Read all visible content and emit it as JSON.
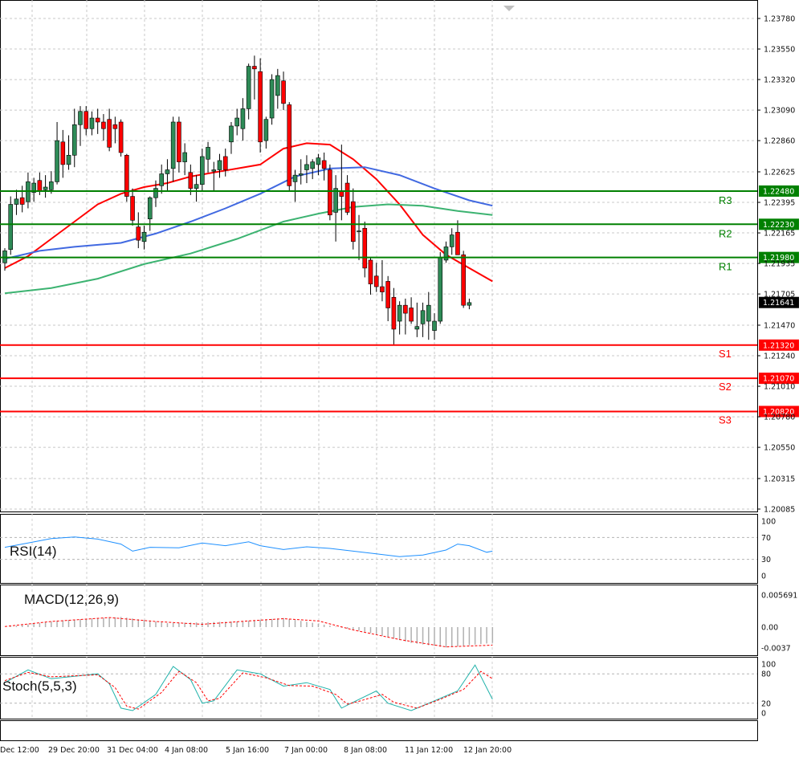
{
  "chart_data": {
    "type": "candlestick",
    "instrument_price_axis": {
      "ticks": [
        "1.23780",
        "1.23550",
        "1.23320",
        "1.23090",
        "1.22860",
        "1.22625",
        "1.22395",
        "1.22165",
        "1.21935",
        "1.21705",
        "1.21470",
        "1.21240",
        "1.21010",
        "1.20780",
        "1.20550",
        "1.20315",
        "1.20085"
      ],
      "range": [
        1.2005,
        1.2381
      ]
    },
    "current_price": "1.21641",
    "x_labels": [
      "Dec 12:00",
      "29 Dec 20:00",
      "31 Dec 04:00",
      "4 Jan 08:00",
      "5 Jan 16:00",
      "7 Jan 00:00",
      "8 Jan 08:00",
      "11 Jan 12:00",
      "12 Jan 20:00"
    ],
    "levels": [
      {
        "name": "R3",
        "value": "1.22480",
        "color": "#008000"
      },
      {
        "name": "R2",
        "value": "1.22230",
        "color": "#008000"
      },
      {
        "name": "R1",
        "value": "1.21980",
        "color": "#008000"
      },
      {
        "name": "S1",
        "value": "1.21320",
        "color": "#ff0000"
      },
      {
        "name": "S2",
        "value": "1.21070",
        "color": "#ff0000"
      },
      {
        "name": "S3",
        "value": "1.20820",
        "color": "#ff0000"
      }
    ],
    "candles": [
      [
        1.2194,
        1.2205,
        1.2188,
        1.2203
      ],
      [
        1.2204,
        1.2244,
        1.22,
        1.2238
      ],
      [
        1.2238,
        1.2249,
        1.223,
        1.2242
      ],
      [
        1.2243,
        1.2252,
        1.2232,
        1.2238
      ],
      [
        1.224,
        1.2262,
        1.2235,
        1.2255
      ],
      [
        1.2247,
        1.2258,
        1.224,
        1.2254
      ],
      [
        1.2256,
        1.2262,
        1.2245,
        1.2248
      ],
      [
        1.2249,
        1.226,
        1.2243,
        1.2251
      ],
      [
        1.2249,
        1.2263,
        1.2246,
        1.2255
      ],
      [
        1.2255,
        1.23,
        1.2253,
        1.2286
      ],
      [
        1.2285,
        1.2294,
        1.2258,
        1.2268
      ],
      [
        1.2268,
        1.229,
        1.2264,
        1.2275
      ],
      [
        1.2275,
        1.231,
        1.2266,
        1.2298
      ],
      [
        1.2298,
        1.2312,
        1.2282,
        1.2308
      ],
      [
        1.2308,
        1.2312,
        1.229,
        1.2295
      ],
      [
        1.2295,
        1.2308,
        1.229,
        1.2303
      ],
      [
        1.2303,
        1.231,
        1.2291,
        1.23
      ],
      [
        1.23,
        1.2306,
        1.2286,
        1.2295
      ],
      [
        1.2302,
        1.231,
        1.2278,
        1.2281
      ],
      [
        1.2298,
        1.2304,
        1.2284,
        1.2295
      ],
      [
        1.23,
        1.2302,
        1.2274,
        1.2277
      ],
      [
        1.2275,
        1.2276,
        1.224,
        1.2244
      ],
      [
        1.2244,
        1.225,
        1.2222,
        1.2226
      ],
      [
        1.2221,
        1.2232,
        1.2205,
        1.2211
      ],
      [
        1.221,
        1.2222,
        1.2204,
        1.2217
      ],
      [
        1.2227,
        1.2244,
        1.2218,
        1.2243
      ],
      [
        1.2243,
        1.2256,
        1.2236,
        1.225
      ],
      [
        1.2252,
        1.2268,
        1.2246,
        1.2261
      ],
      [
        1.2261,
        1.2272,
        1.2248,
        1.2264
      ],
      [
        1.2265,
        1.2304,
        1.2255,
        1.23
      ],
      [
        1.23,
        1.2304,
        1.2262,
        1.227
      ],
      [
        1.227,
        1.2284,
        1.226,
        1.2277
      ],
      [
        1.2262,
        1.2268,
        1.2245,
        1.225
      ],
      [
        1.225,
        1.226,
        1.224,
        1.2253
      ],
      [
        1.2253,
        1.228,
        1.2248,
        1.2274
      ],
      [
        1.2272,
        1.2285,
        1.2262,
        1.2281
      ],
      [
        1.2263,
        1.227,
        1.2248,
        1.2264
      ],
      [
        1.2264,
        1.2276,
        1.2258,
        1.2271
      ],
      [
        1.2274,
        1.228,
        1.2259,
        1.2264
      ],
      [
        1.2285,
        1.23,
        1.2276,
        1.2297
      ],
      [
        1.2297,
        1.231,
        1.229,
        1.2303
      ],
      [
        1.2295,
        1.2318,
        1.2286,
        1.231
      ],
      [
        1.231,
        1.2344,
        1.2302,
        1.2342
      ],
      [
        1.2342,
        1.235,
        1.2317,
        1.234
      ],
      [
        1.2338,
        1.2348,
        1.2277,
        1.2285
      ],
      [
        1.2286,
        1.2304,
        1.228,
        1.2302
      ],
      [
        1.2303,
        1.2336,
        1.2298,
        1.2332
      ],
      [
        1.232,
        1.234,
        1.231,
        1.2335
      ],
      [
        1.2331,
        1.2338,
        1.2309,
        1.2314
      ],
      [
        1.2313,
        1.2315,
        1.2248,
        1.2252
      ],
      [
        1.2255,
        1.2264,
        1.224,
        1.226
      ],
      [
        1.226,
        1.2272,
        1.2253,
        1.2261
      ],
      [
        1.2264,
        1.2275,
        1.2254,
        1.2268
      ],
      [
        1.2265,
        1.2272,
        1.2257,
        1.227
      ],
      [
        1.2268,
        1.2276,
        1.226,
        1.2273
      ],
      [
        1.2271,
        1.2277,
        1.2256,
        1.2265
      ],
      [
        1.2264,
        1.2268,
        1.2226,
        1.223
      ],
      [
        1.2232,
        1.226,
        1.221,
        1.225
      ],
      [
        1.2248,
        1.2283,
        1.2226,
        1.2244
      ],
      [
        1.2254,
        1.226,
        1.223,
        1.2232
      ],
      [
        1.224,
        1.225,
        1.2204,
        1.221
      ],
      [
        1.2218,
        1.223,
        1.2196,
        1.2218
      ],
      [
        1.222,
        1.2225,
        1.2183,
        1.219
      ],
      [
        1.2196,
        1.2198,
        1.217,
        1.2178
      ],
      [
        1.2184,
        1.2194,
        1.2172,
        1.2176
      ],
      [
        1.2176,
        1.2196,
        1.2165,
        1.2172
      ],
      [
        1.218,
        1.2184,
        1.215,
        1.216
      ],
      [
        1.2168,
        1.2175,
        1.2132,
        1.2144
      ],
      [
        1.215,
        1.2165,
        1.214,
        1.2162
      ],
      [
        1.2162,
        1.2167,
        1.214,
        1.2156
      ],
      [
        1.216,
        1.2168,
        1.2148,
        1.215
      ],
      [
        1.2144,
        1.2164,
        1.2138,
        1.2146
      ],
      [
        1.2148,
        1.2164,
        1.2138,
        1.2158
      ],
      [
        1.215,
        1.2172,
        1.2136,
        1.2162
      ],
      [
        1.2143,
        1.2156,
        1.2136,
        1.215
      ],
      [
        1.215,
        1.2202,
        1.2148,
        1.2198
      ],
      [
        1.2196,
        1.221,
        1.2194,
        1.2206
      ],
      [
        1.2206,
        1.222,
        1.22,
        1.2215
      ],
      [
        1.2217,
        1.2226,
        1.22,
        1.22
      ],
      [
        1.22,
        1.2203,
        1.216,
        1.2162
      ],
      [
        1.2162,
        1.2167,
        1.2159,
        1.2164
      ]
    ],
    "moving_averages": [
      {
        "color": "#ff0000",
        "values": [
          [
            0,
            1.219
          ],
          [
            4,
            1.2199
          ],
          [
            8,
            1.2212
          ],
          [
            12,
            1.2225
          ],
          [
            16,
            1.2238
          ],
          [
            20,
            1.2246
          ],
          [
            24,
            1.2251
          ],
          [
            28,
            1.2254
          ],
          [
            32,
            1.2259
          ],
          [
            36,
            1.2262
          ],
          [
            40,
            1.2265
          ],
          [
            44,
            1.2268
          ],
          [
            48,
            1.228
          ],
          [
            52,
            1.2284
          ],
          [
            56,
            1.2283
          ],
          [
            60,
            1.2272
          ],
          [
            64,
            1.2257
          ],
          [
            68,
            1.2238
          ],
          [
            72,
            1.2215
          ],
          [
            76,
            1.22
          ],
          [
            80,
            1.219
          ],
          [
            84,
            1.218
          ]
        ]
      },
      {
        "color": "#4169e1",
        "values": [
          [
            0,
            1.2197
          ],
          [
            6,
            1.2203
          ],
          [
            12,
            1.2206
          ],
          [
            20,
            1.2209
          ],
          [
            26,
            1.2216
          ],
          [
            32,
            1.2225
          ],
          [
            38,
            1.2235
          ],
          [
            44,
            1.2246
          ],
          [
            50,
            1.2259
          ],
          [
            56,
            1.2265
          ],
          [
            62,
            1.2266
          ],
          [
            68,
            1.226
          ],
          [
            74,
            1.225
          ],
          [
            80,
            1.2241
          ],
          [
            84,
            1.2237
          ]
        ]
      },
      {
        "color": "#3cb371",
        "values": [
          [
            0,
            1.2171
          ],
          [
            8,
            1.2175
          ],
          [
            16,
            1.2182
          ],
          [
            24,
            1.2193
          ],
          [
            32,
            1.2201
          ],
          [
            40,
            1.2212
          ],
          [
            48,
            1.2225
          ],
          [
            54,
            1.2231
          ],
          [
            60,
            1.2236
          ],
          [
            66,
            1.2238
          ],
          [
            72,
            1.2237
          ],
          [
            78,
            1.2233
          ],
          [
            84,
            1.223
          ]
        ]
      }
    ],
    "rsi": {
      "label": "RSI(14)",
      "ticks": [
        "100",
        "70",
        "30",
        "0"
      ],
      "values": [
        [
          0,
          52
        ],
        [
          4,
          60
        ],
        [
          8,
          68
        ],
        [
          12,
          71
        ],
        [
          16,
          67
        ],
        [
          20,
          58
        ],
        [
          22,
          45
        ],
        [
          25,
          52
        ],
        [
          30,
          51
        ],
        [
          34,
          60
        ],
        [
          38,
          55
        ],
        [
          42,
          62
        ],
        [
          44,
          55
        ],
        [
          48,
          48
        ],
        [
          52,
          53
        ],
        [
          56,
          50
        ],
        [
          60,
          45
        ],
        [
          64,
          40
        ],
        [
          68,
          35
        ],
        [
          72,
          38
        ],
        [
          76,
          47
        ],
        [
          78,
          58
        ],
        [
          80,
          55
        ],
        [
          83,
          43
        ],
        [
          84,
          45
        ]
      ]
    },
    "macd": {
      "label": "MACD(12,26,9)",
      "ticks": [
        "0.005691",
        "0.00",
        "-0.0037"
      ],
      "hist": [
        [
          0,
          0.0
        ],
        [
          10,
          0.0012
        ],
        [
          20,
          0.0018
        ],
        [
          28,
          0.0007
        ],
        [
          40,
          0.001
        ],
        [
          48,
          0.0016
        ],
        [
          54,
          0.0006
        ],
        [
          62,
          -0.0008
        ],
        [
          70,
          -0.0028
        ],
        [
          76,
          -0.0036
        ],
        [
          84,
          -0.0028
        ]
      ],
      "signal": [
        [
          0,
          0.0001
        ],
        [
          8,
          0.001
        ],
        [
          18,
          0.0017
        ],
        [
          26,
          0.001
        ],
        [
          34,
          0.0005
        ],
        [
          42,
          0.0011
        ],
        [
          48,
          0.0015
        ],
        [
          54,
          0.0011
        ],
        [
          60,
          -0.0005
        ],
        [
          68,
          -0.0022
        ],
        [
          76,
          -0.0035
        ],
        [
          84,
          -0.0032
        ]
      ]
    },
    "stoch": {
      "label": "Stoch(5,5,3)",
      "ticks": [
        "100",
        "80",
        "20",
        "0"
      ],
      "main": [
        [
          0,
          62
        ],
        [
          4,
          88
        ],
        [
          8,
          70
        ],
        [
          12,
          75
        ],
        [
          16,
          80
        ],
        [
          18,
          60
        ],
        [
          20,
          10
        ],
        [
          22,
          5
        ],
        [
          26,
          38
        ],
        [
          29,
          95
        ],
        [
          32,
          68
        ],
        [
          34,
          20
        ],
        [
          36,
          25
        ],
        [
          40,
          88
        ],
        [
          44,
          80
        ],
        [
          48,
          55
        ],
        [
          52,
          62
        ],
        [
          56,
          48
        ],
        [
          58,
          10
        ],
        [
          60,
          22
        ],
        [
          64,
          45
        ],
        [
          66,
          20
        ],
        [
          70,
          5
        ],
        [
          74,
          25
        ],
        [
          78,
          45
        ],
        [
          81,
          98
        ],
        [
          84,
          28
        ]
      ],
      "signal": [
        [
          0,
          66
        ],
        [
          4,
          83
        ],
        [
          8,
          74
        ],
        [
          12,
          76
        ],
        [
          16,
          78
        ],
        [
          19,
          52
        ],
        [
          21,
          14
        ],
        [
          23,
          8
        ],
        [
          27,
          42
        ],
        [
          30,
          85
        ],
        [
          33,
          62
        ],
        [
          35,
          25
        ],
        [
          37,
          30
        ],
        [
          41,
          82
        ],
        [
          45,
          72
        ],
        [
          49,
          56
        ],
        [
          53,
          55
        ],
        [
          57,
          38
        ],
        [
          59,
          18
        ],
        [
          61,
          24
        ],
        [
          65,
          38
        ],
        [
          67,
          22
        ],
        [
          71,
          10
        ],
        [
          75,
          28
        ],
        [
          79,
          48
        ],
        [
          82,
          85
        ],
        [
          84,
          70
        ]
      ]
    }
  }
}
